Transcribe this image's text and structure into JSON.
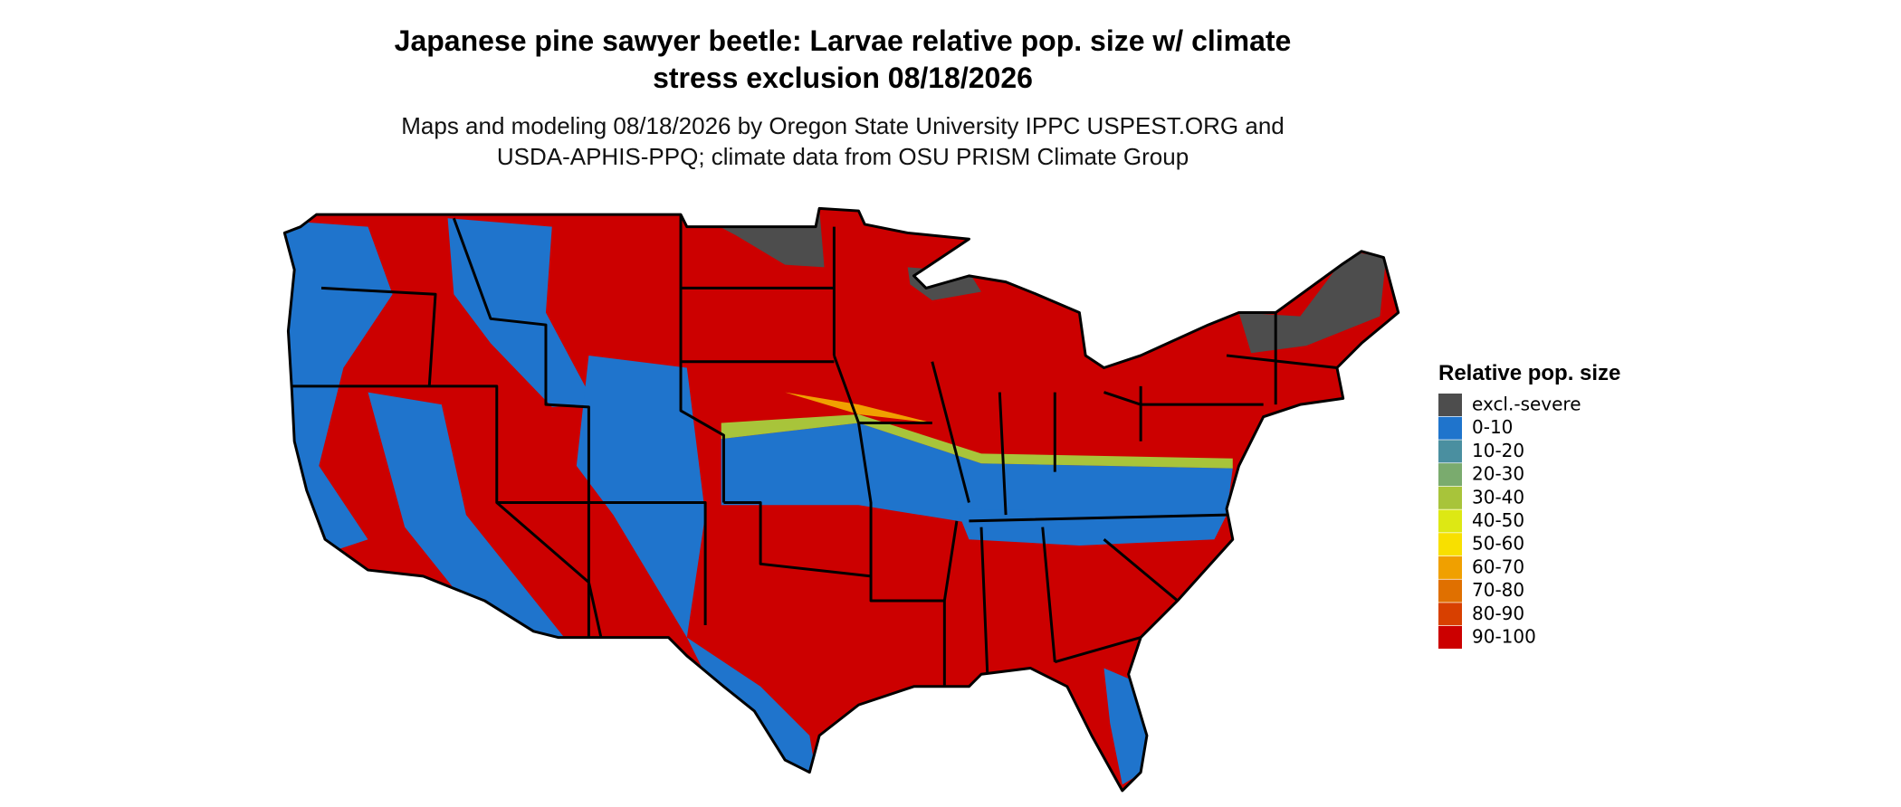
{
  "title": [
    "Japanese pine sawyer beetle: Larvae relative pop. size w/ climate",
    "stress exclusion 08/18/2026"
  ],
  "subtitle": [
    "Maps and modeling 08/18/2026 by Oregon State University IPPC USPEST.ORG and",
    "USDA-APHIS-PPQ; climate data from OSU PRISM Climate Group"
  ],
  "legend": {
    "title": "Relative pop. size",
    "items": [
      {
        "label": "excl.-severe",
        "color": "#4d4d4d"
      },
      {
        "label": "0-10",
        "color": "#1f74cc"
      },
      {
        "label": "10-20",
        "color": "#4a8fa0"
      },
      {
        "label": "20-30",
        "color": "#7aab6e"
      },
      {
        "label": "30-40",
        "color": "#a8c43a"
      },
      {
        "label": "40-50",
        "color": "#dde814"
      },
      {
        "label": "50-60",
        "color": "#f8e000"
      },
      {
        "label": "60-70",
        "color": "#f0a000"
      },
      {
        "label": "70-80",
        "color": "#e07000"
      },
      {
        "label": "80-90",
        "color": "#d84000"
      },
      {
        "label": "90-100",
        "color": "#cc0000"
      }
    ]
  }
}
